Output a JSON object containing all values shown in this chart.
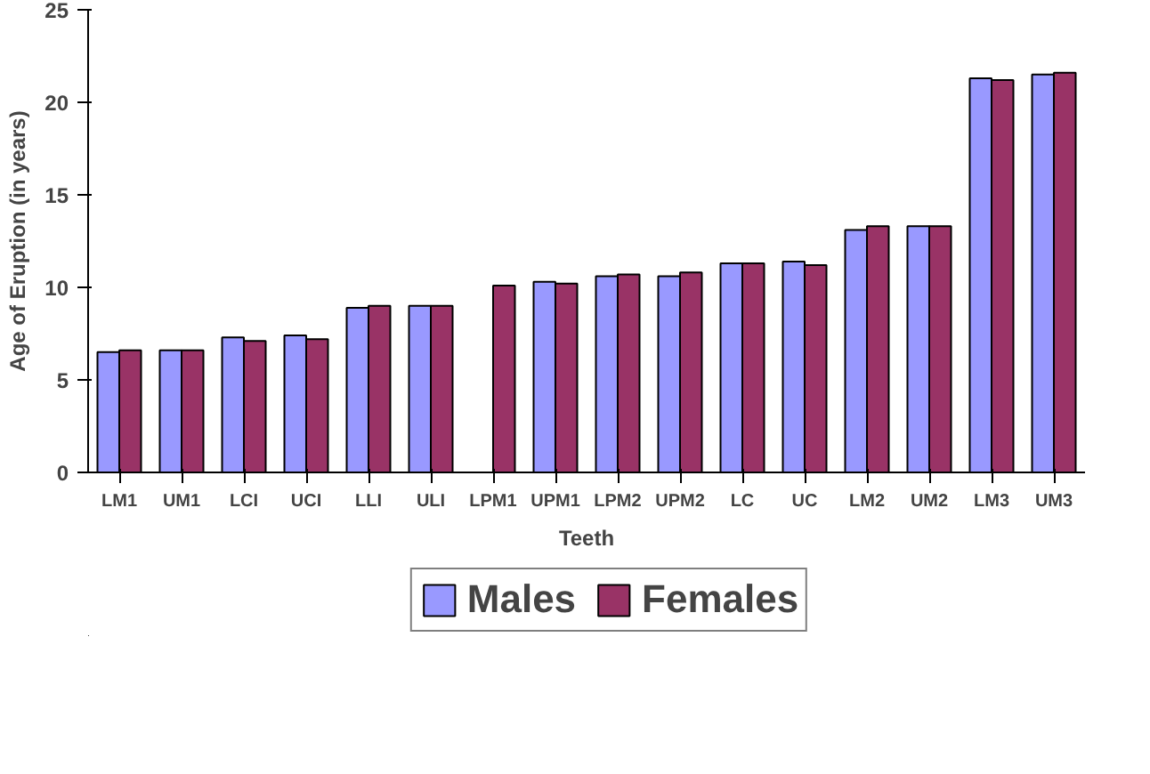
{
  "chart_data": {
    "type": "bar",
    "xlabel": "Teeth",
    "ylabel": "Age of Eruption (in years)",
    "categories": [
      "LM1",
      "UM1",
      "LCI",
      "UCI",
      "LLI",
      "ULI",
      "LPM1",
      "UPM1",
      "LPM2",
      "UPM2",
      "LC",
      "UC",
      "LM2",
      "UM2",
      "LM3",
      "UM3"
    ],
    "series": [
      {
        "name": "Males",
        "color": "#9999ff",
        "values": [
          6.5,
          6.6,
          7.3,
          7.4,
          8.9,
          9.0,
          null,
          10.3,
          10.6,
          10.6,
          11.3,
          11.4,
          13.1,
          13.3,
          21.3,
          21.5
        ]
      },
      {
        "name": "Females",
        "color": "#993366",
        "values": [
          6.6,
          6.6,
          7.1,
          7.2,
          9.0,
          9.0,
          10.1,
          10.2,
          10.7,
          10.8,
          11.3,
          11.2,
          13.3,
          13.3,
          21.2,
          21.6
        ]
      }
    ],
    "ylim": [
      0,
      25
    ],
    "yticks": [
      0,
      5,
      10,
      15,
      20,
      25
    ],
    "grid": false,
    "legend": "bottom"
  }
}
